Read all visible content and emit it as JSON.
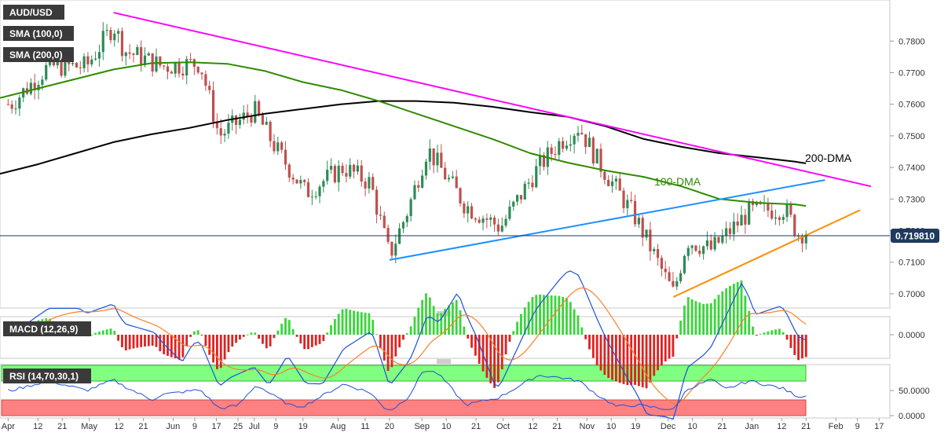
{
  "chart_data": [
    {
      "type": "candlestick",
      "symbol": "AUD/USD",
      "indicators": [
        {
          "label": "SMA (100,0)",
          "color": "#2e8b00"
        },
        {
          "label": "SMA (200,0)",
          "color": "#000000"
        }
      ],
      "ylim": [
        0.696,
        0.792
      ],
      "y_ticks": [
        "0.7800",
        "0.7700",
        "0.7600",
        "0.7500",
        "0.7400",
        "0.7300",
        "0.7200",
        "0.7100",
        "0.7000"
      ],
      "current_price": "0.719810",
      "annotations": [
        "200-DMA",
        "100-DMA"
      ],
      "sma100": [
        {
          "x": "2021-03-29",
          "y": 0.762
        },
        {
          "x": "2021-04-12",
          "y": 0.765
        },
        {
          "x": "2021-04-26",
          "y": 0.768
        },
        {
          "x": "2021-05-10",
          "y": 0.771
        },
        {
          "x": "2021-05-24",
          "y": 0.773
        },
        {
          "x": "2021-06-07",
          "y": 0.7733
        },
        {
          "x": "2021-06-21",
          "y": 0.7728
        },
        {
          "x": "2021-07-05",
          "y": 0.7705
        },
        {
          "x": "2021-07-19",
          "y": 0.767
        },
        {
          "x": "2021-08-02",
          "y": 0.7645
        },
        {
          "x": "2021-08-16",
          "y": 0.761
        },
        {
          "x": "2021-08-30",
          "y": 0.757
        },
        {
          "x": "2021-09-13",
          "y": 0.753
        },
        {
          "x": "2021-09-27",
          "y": 0.749
        },
        {
          "x": "2021-10-11",
          "y": 0.7445
        },
        {
          "x": "2021-10-25",
          "y": 0.7415
        },
        {
          "x": "2021-11-08",
          "y": 0.739
        },
        {
          "x": "2021-11-22",
          "y": 0.737
        },
        {
          "x": "2021-12-06",
          "y": 0.734
        },
        {
          "x": "2021-12-20",
          "y": 0.73
        },
        {
          "x": "2022-01-03",
          "y": 0.7288
        },
        {
          "x": "2022-01-17",
          "y": 0.7283
        },
        {
          "x": "2022-01-21",
          "y": 0.7278
        }
      ],
      "sma200": [
        {
          "x": "2021-03-29",
          "y": 0.738
        },
        {
          "x": "2021-04-12",
          "y": 0.741
        },
        {
          "x": "2021-04-26",
          "y": 0.7445
        },
        {
          "x": "2021-05-10",
          "y": 0.748
        },
        {
          "x": "2021-05-24",
          "y": 0.7505
        },
        {
          "x": "2021-06-07",
          "y": 0.7525
        },
        {
          "x": "2021-06-21",
          "y": 0.755
        },
        {
          "x": "2021-07-05",
          "y": 0.757
        },
        {
          "x": "2021-07-19",
          "y": 0.7585
        },
        {
          "x": "2021-08-02",
          "y": 0.76
        },
        {
          "x": "2021-08-16",
          "y": 0.761
        },
        {
          "x": "2021-08-30",
          "y": 0.761
        },
        {
          "x": "2021-09-13",
          "y": 0.7605
        },
        {
          "x": "2021-09-27",
          "y": 0.7592
        },
        {
          "x": "2021-10-11",
          "y": 0.7575
        },
        {
          "x": "2021-10-25",
          "y": 0.756
        },
        {
          "x": "2021-11-08",
          "y": 0.753
        },
        {
          "x": "2021-11-22",
          "y": 0.749
        },
        {
          "x": "2021-12-06",
          "y": 0.7465
        },
        {
          "x": "2021-12-20",
          "y": 0.7445
        },
        {
          "x": "2022-01-03",
          "y": 0.7432
        },
        {
          "x": "2022-01-17",
          "y": 0.7418
        },
        {
          "x": "2022-01-21",
          "y": 0.7413
        }
      ],
      "trendlines": [
        {
          "name": "resistance",
          "color": "#ff00ff",
          "from": {
            "x": "2021-05-10",
            "y": 0.789
          },
          "to": {
            "x": "2022-02-14",
            "y": 0.734
          }
        },
        {
          "name": "rising",
          "color": "#1e90ff",
          "from": {
            "x": "2021-08-20",
            "y": 0.7107
          },
          "to": {
            "x": "2022-01-28",
            "y": 0.736
          }
        },
        {
          "name": "support",
          "color": "#ff8c00",
          "from": {
            "x": "2021-12-03",
            "y": 0.699
          },
          "to": {
            "x": "2022-02-10",
            "y": 0.7265
          }
        }
      ],
      "close": [
        {
          "x": "2021-04-02",
          "y": 0.76
        },
        {
          "x": "2021-04-16",
          "y": 0.772
        },
        {
          "x": "2021-04-30",
          "y": 0.772
        },
        {
          "x": "2021-05-10",
          "y": 0.785
        },
        {
          "x": "2021-05-14",
          "y": 0.777
        },
        {
          "x": "2021-05-28",
          "y": 0.772
        },
        {
          "x": "2021-06-11",
          "y": 0.773
        },
        {
          "x": "2021-06-18",
          "y": 0.75
        },
        {
          "x": "2021-07-01",
          "y": 0.758
        },
        {
          "x": "2021-07-09",
          "y": 0.746
        },
        {
          "x": "2021-07-20",
          "y": 0.732
        },
        {
          "x": "2021-08-03",
          "y": 0.74
        },
        {
          "x": "2021-08-13",
          "y": 0.735
        },
        {
          "x": "2021-08-20",
          "y": 0.712
        },
        {
          "x": "2021-08-27",
          "y": 0.727
        },
        {
          "x": "2021-09-03",
          "y": 0.746
        },
        {
          "x": "2021-09-17",
          "y": 0.728
        },
        {
          "x": "2021-09-30",
          "y": 0.721
        },
        {
          "x": "2021-10-14",
          "y": 0.74
        },
        {
          "x": "2021-10-22",
          "y": 0.748
        },
        {
          "x": "2021-10-29",
          "y": 0.753
        },
        {
          "x": "2021-11-05",
          "y": 0.742
        },
        {
          "x": "2021-11-19",
          "y": 0.724
        },
        {
          "x": "2021-12-03",
          "y": 0.7
        },
        {
          "x": "2021-12-08",
          "y": 0.717
        },
        {
          "x": "2021-12-17",
          "y": 0.714
        },
        {
          "x": "2021-12-31",
          "y": 0.726
        },
        {
          "x": "2022-01-13",
          "y": 0.727
        },
        {
          "x": "2022-01-18",
          "y": 0.719
        },
        {
          "x": "2022-01-21",
          "y": 0.7198
        }
      ]
    },
    {
      "type": "line",
      "label": "MACD (12,26,9)",
      "y_ticks": [
        "0.0000"
      ],
      "ylim": [
        -0.007,
        0.0055
      ]
    },
    {
      "type": "line",
      "label": "RSI (14,70,30,1)",
      "y_ticks": [
        "50.0000",
        "0.0000"
      ],
      "ylim": [
        0,
        100
      ],
      "bands": [
        {
          "name": "overbought",
          "from": 70,
          "to": 100,
          "color": "#80ff80"
        },
        {
          "name": "oversold",
          "from": 0,
          "to": 30,
          "color": "#ff8080"
        }
      ]
    }
  ],
  "x_axis": {
    "ticks": [
      {
        "label": "Apr",
        "date": "2021-04-01"
      },
      {
        "label": "12",
        "date": "2021-04-12"
      },
      {
        "label": "21",
        "date": "2021-04-21"
      },
      {
        "label": "May",
        "date": "2021-05-01"
      },
      {
        "label": "12",
        "date": "2021-05-12"
      },
      {
        "label": "21",
        "date": "2021-05-21"
      },
      {
        "label": "Jun",
        "date": "2021-06-01"
      },
      {
        "label": "9",
        "date": "2021-06-09"
      },
      {
        "label": "17",
        "date": "2021-06-17"
      },
      {
        "label": "25",
        "date": "2021-06-25"
      },
      {
        "label": "Jul",
        "date": "2021-07-01"
      },
      {
        "label": "9",
        "date": "2021-07-09"
      },
      {
        "label": "19",
        "date": "2021-07-19"
      },
      {
        "label": "Aug",
        "date": "2021-08-01"
      },
      {
        "label": "11",
        "date": "2021-08-11"
      },
      {
        "label": "20",
        "date": "2021-08-20"
      },
      {
        "label": "Sep",
        "date": "2021-09-01"
      },
      {
        "label": "10",
        "date": "2021-09-10"
      },
      {
        "label": "21",
        "date": "2021-09-21"
      },
      {
        "label": "Oct",
        "date": "2021-10-01"
      },
      {
        "label": "12",
        "date": "2021-10-12"
      },
      {
        "label": "21",
        "date": "2021-10-21"
      },
      {
        "label": "Nov",
        "date": "2021-11-01"
      },
      {
        "label": "10",
        "date": "2021-11-10"
      },
      {
        "label": "19",
        "date": "2021-11-19"
      },
      {
        "label": "Dec",
        "date": "2021-12-01"
      },
      {
        "label": "10",
        "date": "2021-12-10"
      },
      {
        "label": "21",
        "date": "2021-12-21"
      },
      {
        "label": "Jan",
        "date": "2022-01-01"
      },
      {
        "label": "12",
        "date": "2022-01-12"
      },
      {
        "label": "21",
        "date": "2022-01-21"
      },
      {
        "label": "Feb",
        "date": "2022-02-01"
      },
      {
        "label": "9",
        "date": "2022-02-09"
      },
      {
        "label": "17",
        "date": "2022-02-17"
      }
    ]
  },
  "colors": {
    "bullish": "#2e8b57",
    "bearish": "#c0504d",
    "price_line": "#1f3a5f",
    "price_tag": "#1f3a5f"
  }
}
